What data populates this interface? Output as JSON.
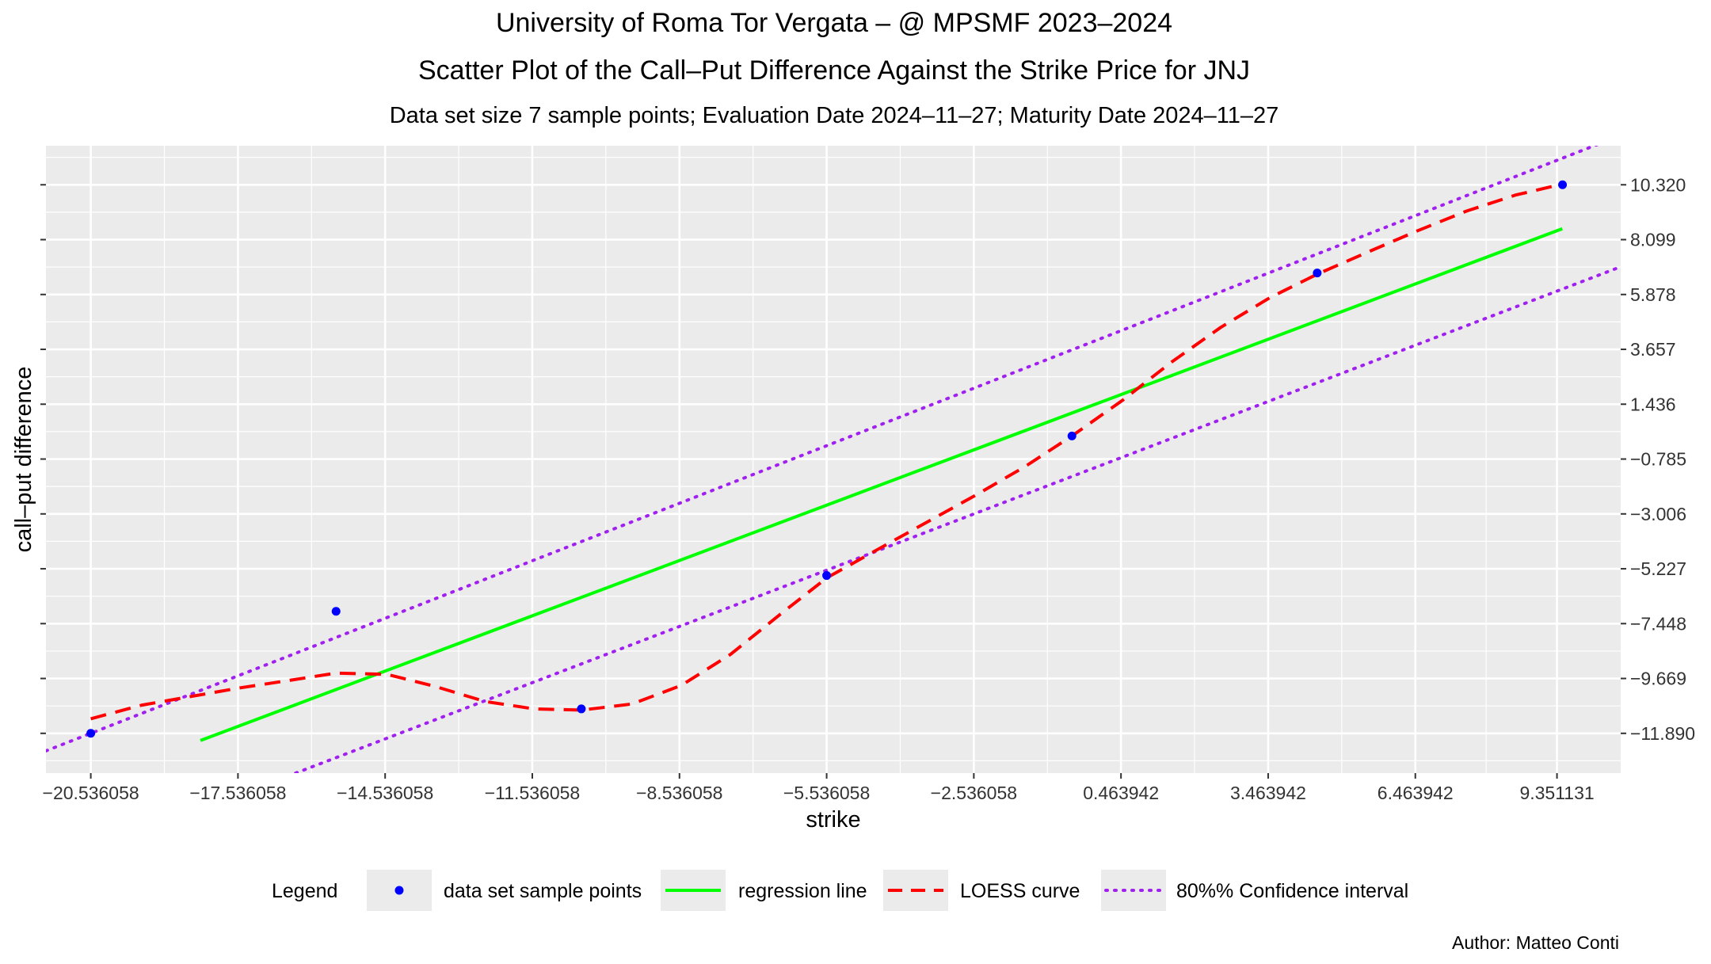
{
  "chart_data": {
    "type": "scatter",
    "title": "University of Roma Tor Vergata – @ MPSMF 2023–2024",
    "subtitle": "Scatter Plot of the Call–Put Difference Against the Strike Price for  JNJ",
    "caption_line": "Data set size  7  sample points;    Evaluation Date 2024–11–27;   Maturity Date 2024–11–27",
    "xlabel": "strike",
    "ylabel": "call–put difference",
    "xlim": [
      -21.45,
      10.65
    ],
    "ylim": [
      -13.5,
      11.9
    ],
    "x_ticks": [
      "−20.536058",
      "−17.536058",
      "−14.536058",
      "−11.536058",
      "−8.536058",
      "−5.536058",
      "−2.536058",
      "0.463942",
      "3.463942",
      "6.463942",
      "9.351131"
    ],
    "x_tick_values": [
      -20.536058,
      -17.536058,
      -14.536058,
      -11.536058,
      -8.536058,
      -5.536058,
      -2.536058,
      0.463942,
      3.463942,
      6.463942,
      9.351131
    ],
    "y_ticks": [
      "10.320",
      "8.099",
      "5.878",
      "3.657",
      "1.436",
      "−0.785",
      "−3.006",
      "−5.227",
      "−7.448",
      "−9.669",
      "−11.890"
    ],
    "y_tick_values": [
      10.32,
      8.099,
      5.878,
      3.657,
      1.436,
      -0.785,
      -3.006,
      -5.227,
      -7.448,
      -9.669,
      -11.89
    ],
    "grid": true,
    "points": {
      "name": "data set sample points",
      "color": "#0000ff",
      "x": [
        -20.536058,
        -15.536058,
        -10.536058,
        -5.536058,
        -0.536058,
        4.463942,
        9.463942
      ],
      "y": [
        -11.89,
        -6.95,
        -10.9,
        -5.5,
        0.15,
        6.75,
        10.32
      ]
    },
    "regression_line": {
      "name": "regression line",
      "color": "#00ff00",
      "x": [
        -18.3,
        9.46
      ],
      "y": [
        -12.18,
        8.54
      ]
    },
    "loess_curve": {
      "name": "LOESS curve",
      "color": "#ff0000",
      "x": [
        -20.536,
        -19.5,
        -18.5,
        -17.5,
        -16.5,
        -15.536,
        -14.5,
        -13.5,
        -12.5,
        -11.5,
        -10.536,
        -9.5,
        -8.5,
        -7.5,
        -6.5,
        -5.536,
        -4.5,
        -3.5,
        -2.5,
        -1.5,
        -0.536,
        0.5,
        1.5,
        2.5,
        3.5,
        4.464,
        5.5,
        6.5,
        7.5,
        8.5,
        9.464
      ],
      "y": [
        -11.3,
        -10.75,
        -10.4,
        -10.05,
        -9.75,
        -9.45,
        -9.5,
        -10.0,
        -10.6,
        -10.9,
        -10.95,
        -10.7,
        -9.95,
        -8.7,
        -7.1,
        -5.6,
        -4.45,
        -3.35,
        -2.25,
        -1.1,
        0.15,
        1.6,
        3.15,
        4.55,
        5.75,
        6.7,
        7.6,
        8.45,
        9.25,
        9.9,
        10.35
      ]
    },
    "confidence_upper": {
      "name": "80%% Confidence interval",
      "color": "#a020f0",
      "x": [
        -21.45,
        10.2
      ],
      "y": [
        -12.6,
        11.97
      ]
    },
    "confidence_lower": {
      "name": "80%% Confidence interval",
      "color": "#a020f0",
      "x": [
        -16.36,
        10.65
      ],
      "y": [
        -13.5,
        7.0
      ]
    },
    "legend": {
      "title": "Legend",
      "position": "bottom",
      "entries": [
        {
          "label": "data set sample points",
          "kind": "point",
          "color": "#0000ff"
        },
        {
          "label": "regression line",
          "kind": "solid",
          "color": "#00ff00"
        },
        {
          "label": "LOESS curve",
          "kind": "dashed",
          "color": "#ff0000"
        },
        {
          "label": "80%% Confidence interval",
          "kind": "dotted",
          "color": "#a020f0"
        }
      ]
    },
    "author": "Author: Matteo Conti",
    "panel_color": "#ebebeb",
    "grid_color": "#ffffff"
  }
}
